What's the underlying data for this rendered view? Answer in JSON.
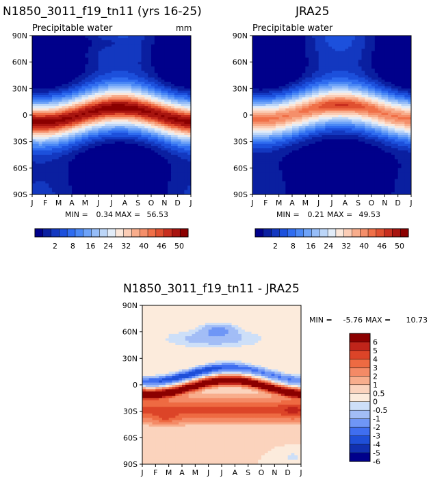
{
  "chart_data": [
    {
      "type": "heatmap",
      "title": "N1850_3011_f19_tn11 (yrs 16-25)",
      "subtitle": "Precipitable water",
      "units": "mm",
      "x_ticks": [
        "J",
        "F",
        "M",
        "A",
        "M",
        "J",
        "J",
        "A",
        "S",
        "O",
        "N",
        "D",
        "J"
      ],
      "y_ticks": [
        "90N",
        "60N",
        "30N",
        "0",
        "30S",
        "60S",
        "90S"
      ],
      "min_label": "MIN =",
      "min_value": "0.34",
      "max_label": "MAX =",
      "max_value": "56.53",
      "zmin": 0.34,
      "zmax": 56.53,
      "colorbar_labels": [
        "2",
        "8",
        "16",
        "24",
        "32",
        "40",
        "46",
        "50"
      ]
    },
    {
      "type": "heatmap",
      "title": "JRA25",
      "subtitle": "Precipitable water",
      "x_ticks": [
        "J",
        "F",
        "M",
        "A",
        "M",
        "J",
        "J",
        "A",
        "S",
        "O",
        "N",
        "D",
        "J"
      ],
      "y_ticks": [
        "90N",
        "60N",
        "30N",
        "0",
        "30S",
        "60S",
        "90S"
      ],
      "min_label": "MIN =",
      "min_value": "0.21",
      "max_label": "MAX =",
      "max_value": "49.53",
      "zmin": 0.21,
      "zmax": 49.53,
      "colorbar_labels": [
        "2",
        "8",
        "16",
        "24",
        "32",
        "40",
        "46",
        "50"
      ]
    },
    {
      "type": "heatmap",
      "title": "N1850_3011_f19_tn11 - JRA25",
      "x_ticks": [
        "J",
        "F",
        "M",
        "A",
        "M",
        "J",
        "J",
        "A",
        "S",
        "O",
        "N",
        "D",
        "J"
      ],
      "y_ticks": [
        "90N",
        "60N",
        "30N",
        "0",
        "30S",
        "60S",
        "90S"
      ],
      "min_label": "MIN =",
      "min_value": "-5.76",
      "max_label": "MAX =",
      "max_value": "10.73",
      "zmin": -5.76,
      "zmax": 10.73,
      "colorbar_labels": [
        "6",
        "5",
        "4",
        "3",
        "2",
        "1",
        "0.5",
        "0",
        "-0.5",
        "-1",
        "-2",
        "-3",
        "-4",
        "-5",
        "-6"
      ]
    }
  ],
  "colors": {
    "scale": [
      "#00008b",
      "#0a1fa0",
      "#1338c0",
      "#1c50dc",
      "#2f6cf0",
      "#4a88f5",
      "#6ea3f8",
      "#96bdf8",
      "#bcd6f8",
      "#e2ecf8",
      "#fbe7da",
      "#fbcdb6",
      "#f8ad8c",
      "#f58f6a",
      "#f07048",
      "#e05030",
      "#c82e1e",
      "#a8140f",
      "#8b0000"
    ],
    "diff": [
      "#00008b",
      "#1130b0",
      "#1f4fd8",
      "#3f6ef0",
      "#6f96f6",
      "#a2bdf6",
      "#cddff8",
      "#fcebdc",
      "#fbd3bd",
      "#f8ad8c",
      "#f48a66",
      "#ee6a42",
      "#dc4428",
      "#c0241a",
      "#8b0000"
    ]
  }
}
